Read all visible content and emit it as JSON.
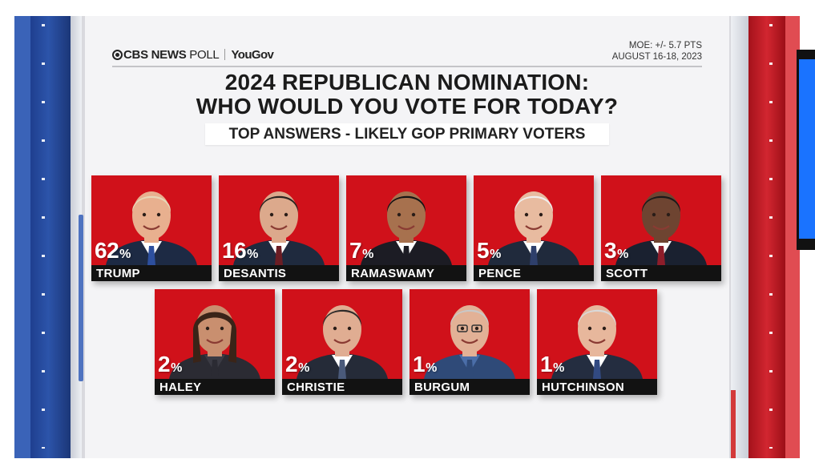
{
  "header": {
    "logo_cbs": "CBS NEWS",
    "logo_poll": " POLL",
    "logo_partner": "YouGov",
    "moe": "MOE: +/- 5.7 PTS",
    "dates": "AUGUST 16-18, 2023"
  },
  "title_line1": "2024 REPUBLICAN NOMINATION:",
  "title_line2": "WHO WOULD YOU VOTE FOR TODAY?",
  "subtitle": "TOP ANSWERS - LIKELY GOP PRIMARY VOTERS",
  "colors": {
    "card_red": "#d0111a",
    "name_bar": "#121212",
    "pillar_blue": "#2c54aa",
    "pillar_red": "#d22630"
  },
  "chart_data": {
    "type": "bar",
    "categories": [
      "TRUMP",
      "DESANTIS",
      "RAMASWAMY",
      "PENCE",
      "SCOTT",
      "HALEY",
      "CHRISTIE",
      "BURGUM",
      "HUTCHINSON"
    ],
    "values": [
      62,
      16,
      7,
      5,
      3,
      2,
      2,
      1,
      1
    ],
    "value_labels": [
      "62",
      "16",
      "7",
      "5",
      "3",
      "2",
      "2",
      "1",
      "1"
    ],
    "unit": "%",
    "title": "2024 REPUBLICAN NOMINATION: WHO WOULD YOU VOTE FOR TODAY?",
    "subtitle": "TOP ANSWERS - LIKELY GOP PRIMARY VOTERS"
  },
  "candidates": [
    {
      "name": "TRUMP",
      "pct": "62",
      "suit": "#1d2a44",
      "tie": "#2d4f9e",
      "hair": "#e6d8b8",
      "skin": "#e8b08f",
      "shirt": "#ffffff"
    },
    {
      "name": "DESANTIS",
      "pct": "16",
      "suit": "#1f2a3e",
      "tie": "#6b1d24",
      "hair": "#2a2420",
      "skin": "#dca98c",
      "shirt": "#ffffff"
    },
    {
      "name": "RAMASWAMY",
      "pct": "7",
      "suit": "#1c1c24",
      "tie": "#1c1c24",
      "hair": "#141414",
      "skin": "#a7714e",
      "shirt": "#ffffff"
    },
    {
      "name": "PENCE",
      "pct": "5",
      "suit": "#202a3c",
      "tie": "#2e3f6b",
      "hair": "#efefef",
      "skin": "#e8bba0",
      "shirt": "#ffffff"
    },
    {
      "name": "SCOTT",
      "pct": "3",
      "suit": "#1a2130",
      "tie": "#8e1d2a",
      "hair": "#1a1a1a",
      "skin": "#6e4431",
      "shirt": "#ffffff"
    },
    {
      "name": "HALEY",
      "pct": "2",
      "suit": "#2b2b33",
      "tie": "#2b2b33",
      "hair": "#3a2418",
      "skin": "#c98f6f",
      "shirt": "#3b3b44"
    },
    {
      "name": "CHRISTIE",
      "pct": "2",
      "suit": "#252b38",
      "tie": "#4a5a7a",
      "hair": "#2e2b2a",
      "skin": "#e0ad92",
      "shirt": "#ffffff"
    },
    {
      "name": "BURGUM",
      "pct": "1",
      "suit": "#2f4a78",
      "tie": "#2f4a78",
      "hair": "#c8c8c8",
      "skin": "#e2b196",
      "shirt": "#4b6ea8"
    },
    {
      "name": "HUTCHINSON",
      "pct": "1",
      "suit": "#242d40",
      "tie": "#324a82",
      "hair": "#d9d9d9",
      "skin": "#e7b79c",
      "shirt": "#ffffff"
    }
  ]
}
